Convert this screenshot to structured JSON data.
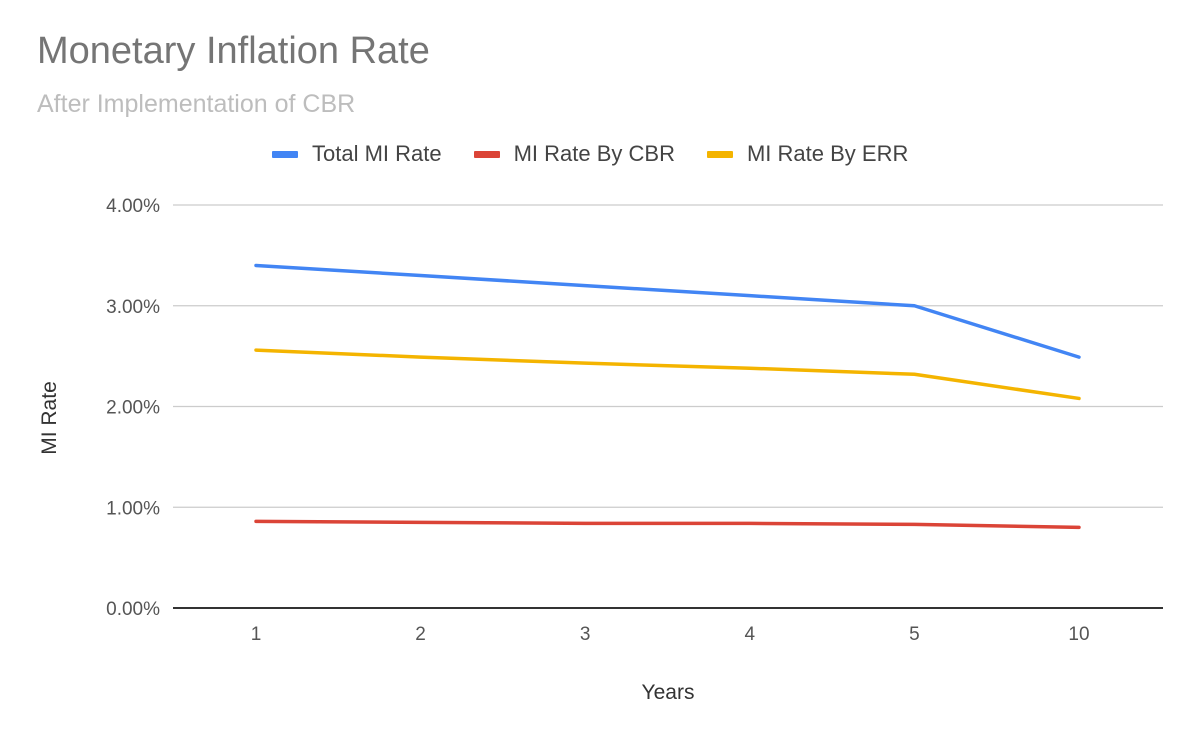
{
  "chart_data": {
    "type": "line",
    "title": "Monetary Inflation Rate",
    "subtitle": "After Implementation of CBR",
    "xlabel": "Years",
    "ylabel": "MI Rate",
    "categories": [
      "1",
      "2",
      "3",
      "4",
      "5",
      "10"
    ],
    "ylim": [
      0,
      0.04
    ],
    "yticks": [
      "0.00%",
      "1.00%",
      "2.00%",
      "3.00%",
      "4.00%"
    ],
    "ytick_values": [
      0,
      0.01,
      0.02,
      0.03,
      0.04
    ],
    "grid": true,
    "legend_position": "top",
    "series": [
      {
        "name": "Total MI Rate",
        "color": "#4285f4",
        "values": [
          0.034,
          0.033,
          0.032,
          0.031,
          0.03,
          0.0249
        ]
      },
      {
        "name": "MI Rate By CBR",
        "color": "#db4437",
        "values": [
          0.0086,
          0.0085,
          0.0084,
          0.0084,
          0.0083,
          0.008
        ]
      },
      {
        "name": "MI Rate By ERR",
        "color": "#f4b400",
        "values": [
          0.0256,
          0.0249,
          0.0243,
          0.0238,
          0.0232,
          0.0208
        ]
      }
    ]
  }
}
